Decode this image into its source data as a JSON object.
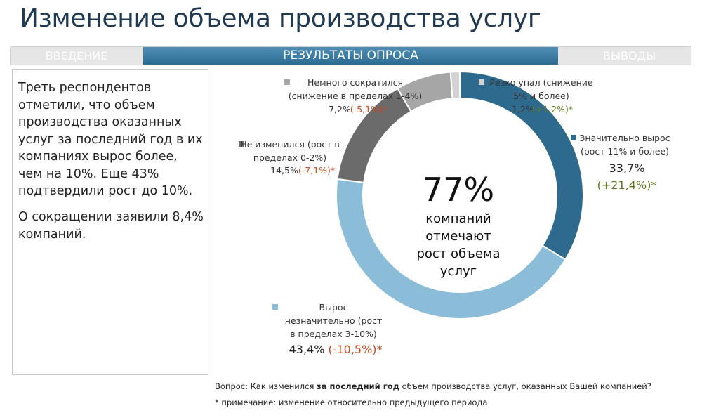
{
  "page_title": "Изменение объема производства услуг",
  "tabs": {
    "left": "ВВЕДЕНИЕ",
    "active": "РЕЗУЛЬТАТЫ ОПРОСА",
    "right": "ВЫВОДЫ"
  },
  "summary": {
    "para1": "Треть респондентов отметили, что объем производства оказанных услуг за последний год в их компаниях вырос более, чем на 10%. Еще 43% подтвердили рост до 10%.",
    "para2": "О сокращении заявили 8,4% компаний."
  },
  "center": {
    "value": "77%",
    "line1": "компаний",
    "line2": "отмечают",
    "line3": "рост объема",
    "line4": "услуг"
  },
  "footnote": {
    "question_prefix": "Вопрос: Как изменился ",
    "question_bold": "за последний год",
    "question_suffix": " объем производства услуг, оказанных Вашей компанией?",
    "note": "* примечание: изменение относительно предыдущего периода"
  },
  "chart_data": {
    "type": "pie",
    "variant": "donut",
    "slices": [
      {
        "name": "Значительно вырос (рост 11% и более)",
        "label_line1": "Значительно вырос",
        "label_line2": "(рост 11% и более)",
        "value": 33.7,
        "value_text": "33,7%",
        "change_text": "(+21,4%)*",
        "change_sign": "pos",
        "color": "#2e6a8e"
      },
      {
        "name": "Вырос незначительно (рост в пределах 3-10%)",
        "label_line1": "Вырос",
        "label_line2": "незначительно (рост",
        "label_line3": "в пределах 3-10%)",
        "value": 43.4,
        "value_text": "43,4%",
        "change_text": "(-10,5%)*",
        "change_sign": "neg",
        "color": "#8bbcd8"
      },
      {
        "name": "Не изменился (рост в пределах 0-2%)",
        "label_line1": "Не изменился (рост в",
        "label_line2": "пределах 0-2%)",
        "value": 14.5,
        "value_text": "14,5%",
        "change_text": "(-7,1%)*",
        "change_sign": "neg",
        "color": "#6b6b6b"
      },
      {
        "name": "Немного сократился (снижение в пределах 1-4%)",
        "label_line1": "Немного сократился",
        "label_line2": "(снижение в пределах 1-4%)",
        "value": 7.2,
        "value_text": "7,2%",
        "change_text": "(-5,1%)*",
        "change_sign": "neg",
        "color": "#a6a6a6"
      },
      {
        "name": "Резко упал (снижение 5% и более)",
        "label_line1": "Резко упал (снижение",
        "label_line2": "5% и более)",
        "value": 1.2,
        "value_text": "1,2%",
        "change_text": "(+1,2%)*",
        "change_sign": "pos",
        "color": "#d2d2d2"
      }
    ]
  }
}
